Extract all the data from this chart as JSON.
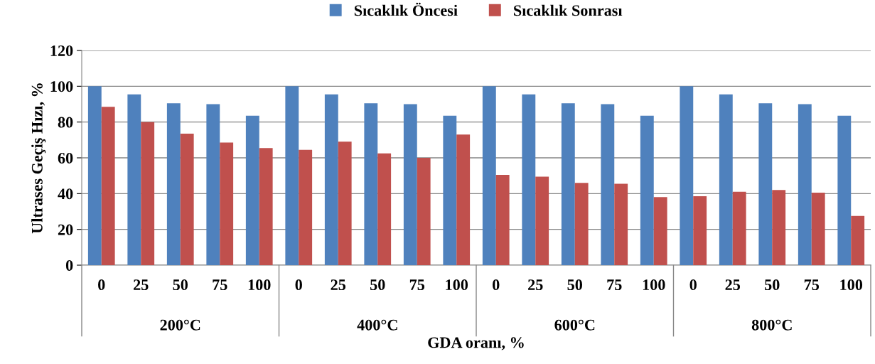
{
  "chart_data": {
    "type": "bar",
    "categories": [
      "0",
      "25",
      "50",
      "75",
      "100",
      "0",
      "25",
      "50",
      "75",
      "100",
      "0",
      "25",
      "50",
      "75",
      "100",
      "0",
      "25",
      "50",
      "75",
      "100"
    ],
    "series": [
      {
        "name": "Sıcaklık Öncesi",
        "color": "#4f81bd",
        "values": [
          100,
          95.5,
          90.5,
          90,
          83.5,
          100,
          95.5,
          90.5,
          90,
          83.5,
          100,
          95.5,
          90.5,
          90,
          83.5,
          100,
          95.5,
          90.5,
          90,
          83.5
        ]
      },
      {
        "name": "Sıcaklık Sonrası",
        "color": "#c0504d",
        "values": [
          88.5,
          80,
          73.5,
          68.5,
          65.5,
          64.5,
          69,
          62.5,
          60,
          73,
          50.5,
          49.5,
          46,
          45.5,
          38,
          38.5,
          41,
          42,
          40.5,
          27.5
        ]
      }
    ],
    "annotations": [
      "200°C",
      "400°C",
      "600°C",
      "800°C"
    ],
    "xlabel": "GDA oranı, %",
    "ylabel": "Ultrases Geçiş Hızı, %",
    "ylim": [
      0,
      120
    ],
    "yticks": [
      0,
      20,
      40,
      60,
      80,
      100,
      120
    ],
    "grid": "y",
    "legend": "top"
  }
}
